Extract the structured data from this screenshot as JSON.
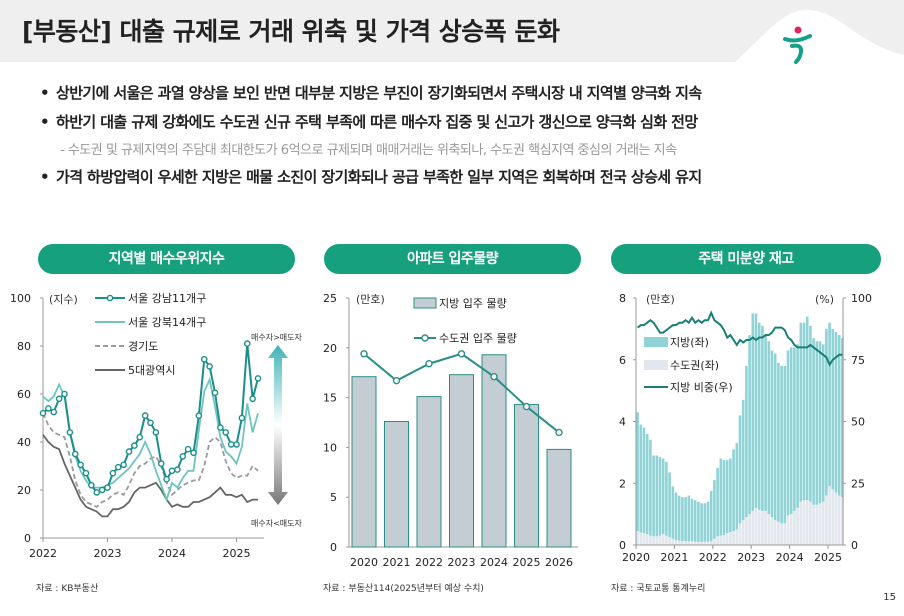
{
  "header": {
    "title": "[부동산] 대출 규제로 거래 위축 및 가격 상승폭 둔화",
    "logo": "하나 logo"
  },
  "bullets": [
    "상반기에 서울은 과열 양상을 보인 반면 대부분 지방은 부진이 장기화되면서 주택시장 내 지역별 양극화 지속",
    "하반기 대출 규제 강화에도 수도권 신규 주택 부족에 따른 매수자 집중 및 신고가 갱신으로 양극화 심화 전망",
    "가격 하방압력이 우세한 지방은 매물 소진이 장기화되나 공급 부족한 일부 지역은 회복하며 전국 상승세 유지"
  ],
  "bullet_symbol": "•",
  "sub_bullet": "- 수도권 및 규제지역의 주담대 최대한도가 6억으로 규제되며 매매거래는 위축되나, 수도권 핵심지역 중심의 거래는 지속",
  "page_number": "15",
  "colors": {
    "pill": "#17a07e",
    "gangnam": "#1a8f8a",
    "gangbuk": "#6cc5c0",
    "gyeonggi": "#9a9aa0",
    "metro": "#666666",
    "bar2": "#c4cdd3",
    "line2": "#2a8f86",
    "local3": "#8fd3d6",
    "capital3": "#e2e7ee",
    "share3": "#1a7f74"
  },
  "chart_data": [
    {
      "type": "line",
      "title": "지역별 매수우위지수",
      "unit": "(지수)",
      "source": "자료 : KB부동산",
      "ylim": [
        0,
        100
      ],
      "yticks": [
        0,
        20,
        40,
        60,
        80,
        100
      ],
      "xticks": [
        "2022",
        "2023",
        "2024",
        "2025"
      ],
      "x_start": "2022-01",
      "x_end": "2025-05",
      "frequency": "monthly",
      "annotations": {
        "top": "매수자>매도자",
        "bottom": "매수자<매도자"
      },
      "series": [
        {
          "name": "서울 강남11개구",
          "style": "line-marker",
          "values": [
            52,
            54,
            52.5,
            58,
            60,
            44,
            35,
            30.5,
            27,
            22,
            19,
            20,
            21,
            27,
            29.5,
            30.5,
            36,
            38.5,
            42,
            51,
            48,
            44,
            31,
            24.5,
            28,
            28.5,
            34,
            37,
            35.5,
            51,
            74.5,
            71.5,
            60.5,
            46,
            44,
            39,
            39,
            50,
            81,
            58,
            66.5
          ]
        },
        {
          "name": "서울 강북14개구",
          "style": "line",
          "values": [
            59,
            57,
            59,
            64,
            59,
            44,
            34,
            28,
            24,
            21,
            21,
            21,
            22,
            23,
            25,
            27,
            29,
            32,
            35,
            40,
            35,
            28,
            22,
            16,
            23,
            21,
            25,
            28,
            28,
            45,
            61,
            66,
            55,
            42,
            36,
            34,
            31,
            38,
            56,
            44,
            52
          ]
        },
        {
          "name": "경기도",
          "style": "dashed",
          "values": [
            52,
            47,
            44,
            43,
            42,
            34,
            24,
            18,
            15,
            14,
            13,
            15,
            16,
            18,
            19,
            18,
            22,
            27,
            30,
            31,
            33,
            34,
            30,
            23,
            18,
            20,
            22,
            23,
            24,
            24,
            30,
            40,
            42,
            40,
            32,
            27,
            25,
            26,
            26,
            30,
            28
          ]
        },
        {
          "name": "5대광역시",
          "style": "line",
          "values": [
            43,
            40,
            38,
            37,
            31,
            26,
            21,
            16,
            13,
            12,
            11,
            9,
            9,
            12,
            12,
            13,
            15,
            19,
            21,
            21,
            22,
            23,
            20,
            16,
            13,
            14,
            13,
            13,
            15,
            15,
            16,
            17,
            19,
            21,
            18,
            18,
            17,
            18,
            15,
            16,
            16
          ]
        }
      ]
    },
    {
      "type": "bar+line",
      "title": "아파트 입주물량",
      "unit": "(만호)",
      "source": "자료 : 부동산114(2025년부터 예상 수치)",
      "ylim": [
        0,
        25
      ],
      "yticks": [
        0,
        5,
        10,
        15,
        20,
        25
      ],
      "categories": [
        "2020",
        "2021",
        "2022",
        "2023",
        "2024",
        "2025",
        "2026"
      ],
      "series": [
        {
          "name": "지방 입주 물량",
          "type": "bar",
          "values": [
            17.1,
            12.6,
            15.1,
            17.3,
            19.3,
            14.3,
            9.8
          ]
        },
        {
          "name": "수도권 입주 물량",
          "type": "line",
          "values": [
            19.4,
            16.7,
            18.4,
            19.4,
            17.1,
            14.1,
            11.5
          ]
        }
      ]
    },
    {
      "type": "stacked-bar+line",
      "title": "주택 미분양 재고",
      "unit_left": "(만호)",
      "unit_right": "(%)",
      "source": "자료 : 국토교통 통계누리",
      "ylim_left": [
        0,
        8
      ],
      "yticks_left": [
        0,
        2,
        4,
        6,
        8
      ],
      "ylim_right": [
        0,
        100
      ],
      "yticks_right": [
        0,
        25,
        50,
        75,
        100
      ],
      "xticks": [
        "2020",
        "2021",
        "2022",
        "2023",
        "2024",
        "2025"
      ],
      "x_start": "2020-01",
      "x_end": "2025-05",
      "frequency": "monthly",
      "series": [
        {
          "name": "지방(좌)",
          "type": "bar",
          "stack_total": [
            4.3,
            3.9,
            3.8,
            3.6,
            3.4,
            2.9,
            2.9,
            2.85,
            2.8,
            2.7,
            2.35,
            1.9,
            1.7,
            1.6,
            1.55,
            1.55,
            1.6,
            1.5,
            1.45,
            1.4,
            1.35,
            1.35,
            1.4,
            1.75,
            2.1,
            2.5,
            2.8,
            2.75,
            2.75,
            2.8,
            3.1,
            3.3,
            4.2,
            4.7,
            5.8,
            6.8,
            7.5,
            7.5,
            7.2,
            7.1,
            6.8,
            6.6,
            6.3,
            6.2,
            5.9,
            5.8,
            5.8,
            6.3,
            6.4,
            6.4,
            6.5,
            7.2,
            7.2,
            7.4,
            7.1,
            6.7,
            6.6,
            6.6,
            6.5,
            7.0,
            7.2,
            7.0,
            6.9,
            6.8,
            6.7
          ]
        },
        {
          "name": "수도권(좌)",
          "type": "bar",
          "values": [
            0.45,
            0.4,
            0.38,
            0.35,
            0.3,
            0.28,
            0.28,
            0.3,
            0.35,
            0.3,
            0.25,
            0.2,
            0.15,
            0.15,
            0.13,
            0.13,
            0.12,
            0.12,
            0.1,
            0.1,
            0.1,
            0.1,
            0.1,
            0.12,
            0.2,
            0.28,
            0.3,
            0.32,
            0.38,
            0.42,
            0.45,
            0.5,
            0.7,
            0.8,
            0.9,
            1.0,
            1.1,
            1.2,
            1.15,
            1.1,
            1.1,
            1.0,
            0.9,
            0.8,
            0.75,
            0.7,
            0.7,
            0.95,
            1.0,
            1.1,
            1.2,
            1.4,
            1.45,
            1.45,
            1.4,
            1.3,
            1.3,
            1.35,
            1.4,
            1.6,
            1.9,
            1.8,
            1.7,
            1.6,
            1.55
          ]
        },
        {
          "name": "지방 비중(우)",
          "type": "line",
          "axis": "right",
          "values": [
            88,
            89,
            89,
            90,
            91,
            90,
            88,
            86,
            86,
            87,
            88,
            89,
            89,
            90,
            90,
            91,
            90,
            92,
            90,
            91,
            90,
            91,
            91,
            94,
            91,
            90,
            89,
            87,
            84,
            85,
            83,
            81,
            83,
            82,
            83,
            83,
            84,
            83,
            84,
            84,
            85,
            85,
            86,
            88,
            88,
            88,
            87,
            84,
            83,
            81,
            80,
            80,
            80,
            80,
            81,
            80,
            79,
            78,
            77,
            76,
            73,
            75,
            76,
            77,
            77
          ]
        }
      ]
    }
  ]
}
